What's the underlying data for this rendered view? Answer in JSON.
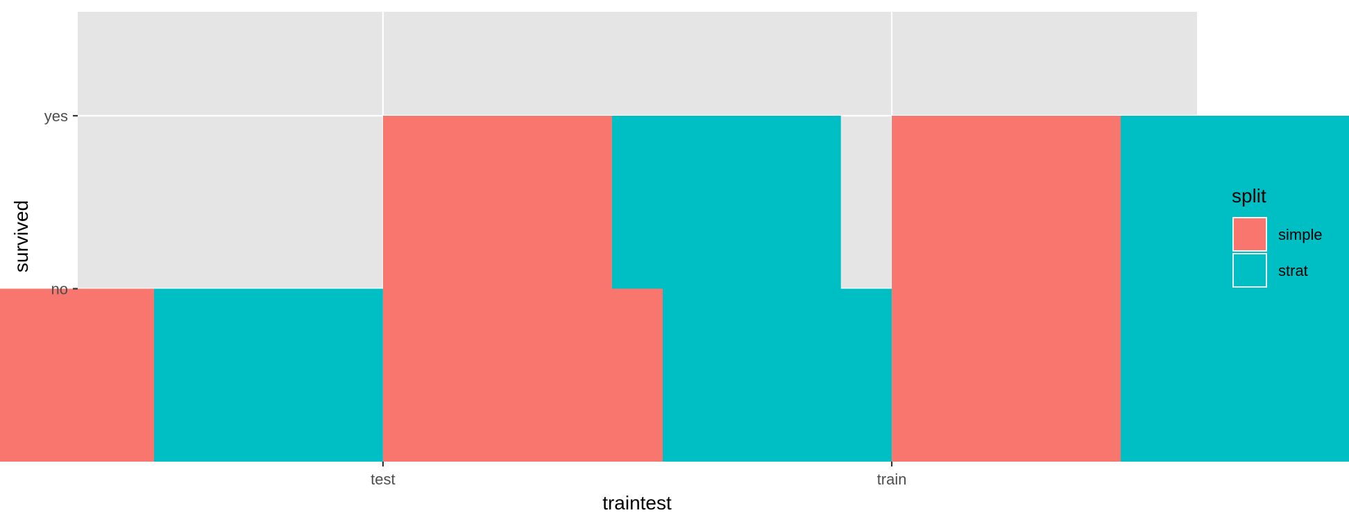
{
  "chart_data": {
    "type": "bar",
    "xlabel": "traintest",
    "ylabel": "survived",
    "categories": [
      "test",
      "train"
    ],
    "y_levels": [
      "no",
      "yes"
    ],
    "series": [
      {
        "name": "simple",
        "color": "#F8766D",
        "stack": [
          "no",
          "yes"
        ]
      },
      {
        "name": "strat",
        "color": "#00BFC4",
        "stack": [
          "no",
          "yes"
        ]
      }
    ],
    "legend": {
      "title": "split",
      "position": "right"
    },
    "grid": true,
    "panel_background": "#E5E5E5",
    "gridline_color": "#FFFFFF"
  }
}
